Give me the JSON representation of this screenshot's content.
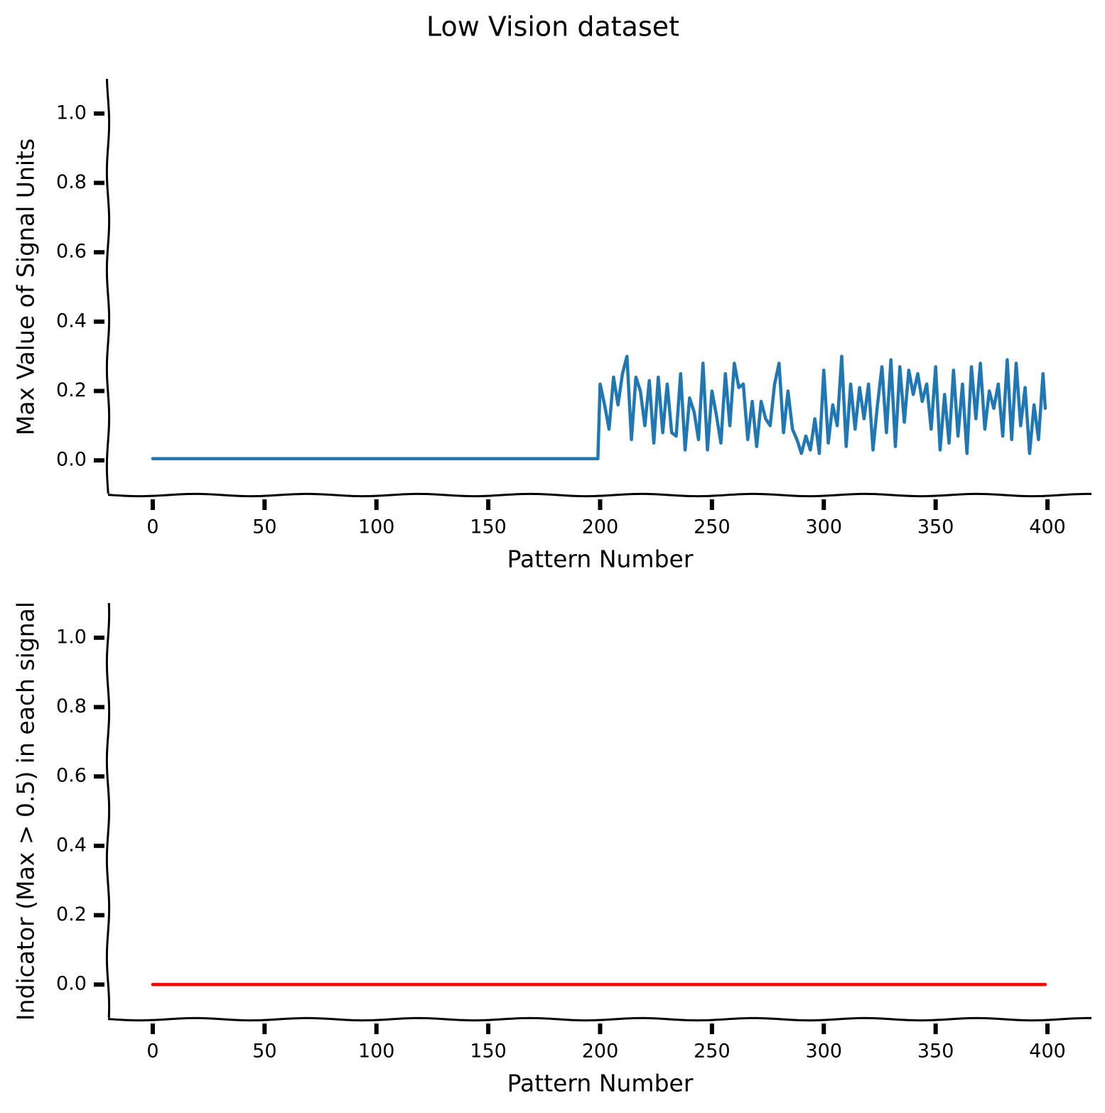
{
  "title": "Low Vision dataset",
  "chart_data": [
    {
      "type": "line",
      "xlabel": "Pattern Number",
      "ylabel": "Max Value of Signal Units",
      "color": "#1f77b4",
      "xlim": [
        -20,
        420
      ],
      "ylim": [
        -0.1,
        1.1
      ],
      "xticks": [
        0,
        50,
        100,
        150,
        200,
        250,
        300,
        350,
        400
      ],
      "yticks": [
        {
          "value": 0,
          "label": "0.0"
        },
        0.2,
        0.4,
        0.6,
        0.8,
        {
          "value": 1,
          "label": "1.0"
        }
      ],
      "x": [
        0,
        199,
        200,
        202,
        204,
        206,
        208,
        210,
        212,
        214,
        216,
        218,
        220,
        222,
        224,
        226,
        228,
        230,
        232,
        234,
        236,
        238,
        240,
        242,
        244,
        246,
        248,
        250,
        252,
        254,
        256,
        258,
        260,
        262,
        264,
        266,
        268,
        270,
        272,
        274,
        276,
        278,
        280,
        282,
        284,
        286,
        288,
        290,
        292,
        294,
        296,
        298,
        300,
        302,
        304,
        306,
        308,
        310,
        312,
        314,
        316,
        318,
        320,
        322,
        324,
        326,
        328,
        330,
        332,
        334,
        336,
        338,
        340,
        342,
        344,
        346,
        348,
        350,
        352,
        354,
        356,
        358,
        360,
        362,
        364,
        366,
        368,
        370,
        372,
        374,
        376,
        378,
        380,
        382,
        384,
        386,
        388,
        390,
        392,
        394,
        396,
        398,
        399
      ],
      "values": [
        0.005,
        0.005,
        0.22,
        0.16,
        0.09,
        0.24,
        0.16,
        0.25,
        0.3,
        0.06,
        0.24,
        0.2,
        0.1,
        0.23,
        0.05,
        0.24,
        0.08,
        0.22,
        0.08,
        0.07,
        0.25,
        0.03,
        0.18,
        0.14,
        0.06,
        0.28,
        0.03,
        0.2,
        0.13,
        0.05,
        0.25,
        0.1,
        0.28,
        0.21,
        0.22,
        0.06,
        0.17,
        0.04,
        0.17,
        0.12,
        0.1,
        0.22,
        0.28,
        0.08,
        0.2,
        0.09,
        0.06,
        0.02,
        0.07,
        0.03,
        0.12,
        0.02,
        0.26,
        0.05,
        0.16,
        0.1,
        0.3,
        0.04,
        0.22,
        0.09,
        0.21,
        0.12,
        0.22,
        0.03,
        0.16,
        0.27,
        0.08,
        0.29,
        0.04,
        0.27,
        0.11,
        0.26,
        0.19,
        0.25,
        0.17,
        0.22,
        0.09,
        0.27,
        0.03,
        0.19,
        0.05,
        0.26,
        0.07,
        0.22,
        0.02,
        0.27,
        0.12,
        0.28,
        0.09,
        0.2,
        0.15,
        0.22,
        0.07,
        0.29,
        0.06,
        0.28,
        0.1,
        0.21,
        0.02,
        0.16,
        0.06,
        0.25,
        0.15
      ]
    },
    {
      "type": "line",
      "xlabel": "Pattern Number",
      "ylabel": "Indicator (Max > 0.5) in each signal",
      "color": "#ff0000",
      "xlim": [
        -20,
        420
      ],
      "ylim": [
        -0.1,
        1.1
      ],
      "xticks": [
        0,
        50,
        100,
        150,
        200,
        250,
        300,
        350,
        400
      ],
      "yticks": [
        {
          "value": 0,
          "label": "0.0"
        },
        0.2,
        0.4,
        0.6,
        0.8,
        {
          "value": 1,
          "label": "1.0"
        }
      ],
      "x": [
        0,
        399
      ],
      "values": [
        0,
        0
      ]
    }
  ]
}
